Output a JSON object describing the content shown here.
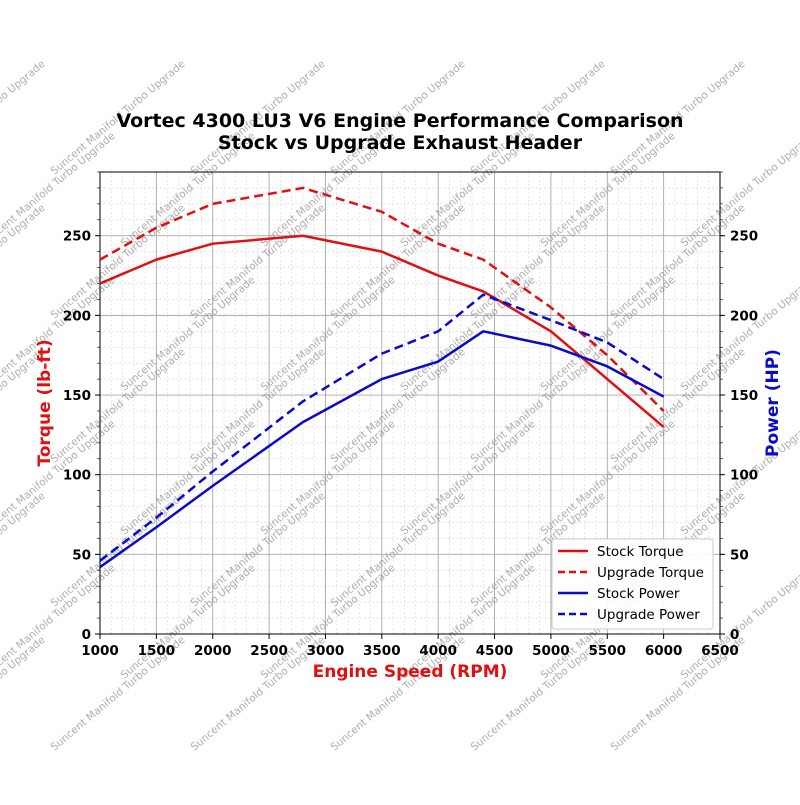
{
  "chart_data": {
    "type": "line",
    "title_line1": "Vortec 4300 LU3 V6 Engine Performance Comparison",
    "title_line2": "Stock vs Upgrade Exhaust Header",
    "xlabel": "Engine Speed (RPM)",
    "ylabel_left": "Torque (lb-ft)",
    "ylabel_right": "Power (HP)",
    "xlim": [
      1000,
      6500
    ],
    "ylim": [
      0,
      290
    ],
    "x_ticks": [
      "1000",
      "1500",
      "2000",
      "2500",
      "3000",
      "3500",
      "4000",
      "4500",
      "5000",
      "5500",
      "6000",
      "6500"
    ],
    "y_ticks": [
      "0",
      "50",
      "100",
      "150",
      "200",
      "250"
    ],
    "grid": true,
    "legend_position": "bottom-right",
    "watermark": "Suncent Manifold Turbo Upgrade",
    "series": [
      {
        "name": "Stock Torque",
        "axis": "left",
        "color": "#e01010",
        "style": "solid",
        "x": [
          1000,
          1500,
          2000,
          2800,
          3500,
          4000,
          4400,
          5000,
          5500,
          6000
        ],
        "y": [
          220,
          235,
          245,
          250,
          240,
          225,
          215,
          190,
          160,
          130
        ]
      },
      {
        "name": "Upgrade Torque",
        "axis": "left",
        "color": "#e01010",
        "style": "dashed",
        "x": [
          1000,
          1500,
          2000,
          2800,
          3500,
          4000,
          4400,
          5000,
          5500,
          6000
        ],
        "y": [
          235,
          255,
          270,
          280,
          265,
          245,
          235,
          205,
          175,
          140
        ]
      },
      {
        "name": "Stock Power",
        "axis": "right",
        "color": "#0a0acc",
        "style": "solid",
        "x": [
          1000,
          1500,
          2000,
          2800,
          3500,
          4000,
          4400,
          5000,
          5500,
          6000
        ],
        "y": [
          42,
          67,
          93,
          133,
          160,
          171,
          190,
          181,
          168,
          149
        ]
      },
      {
        "name": "Upgrade Power",
        "axis": "right",
        "color": "#0a0acc",
        "style": "dashed",
        "x": [
          1000,
          1500,
          2000,
          2800,
          3500,
          4000,
          4400,
          5000,
          5500,
          6000
        ],
        "y": [
          46,
          73,
          102,
          146,
          176,
          190,
          213,
          197,
          183,
          160
        ]
      }
    ]
  }
}
